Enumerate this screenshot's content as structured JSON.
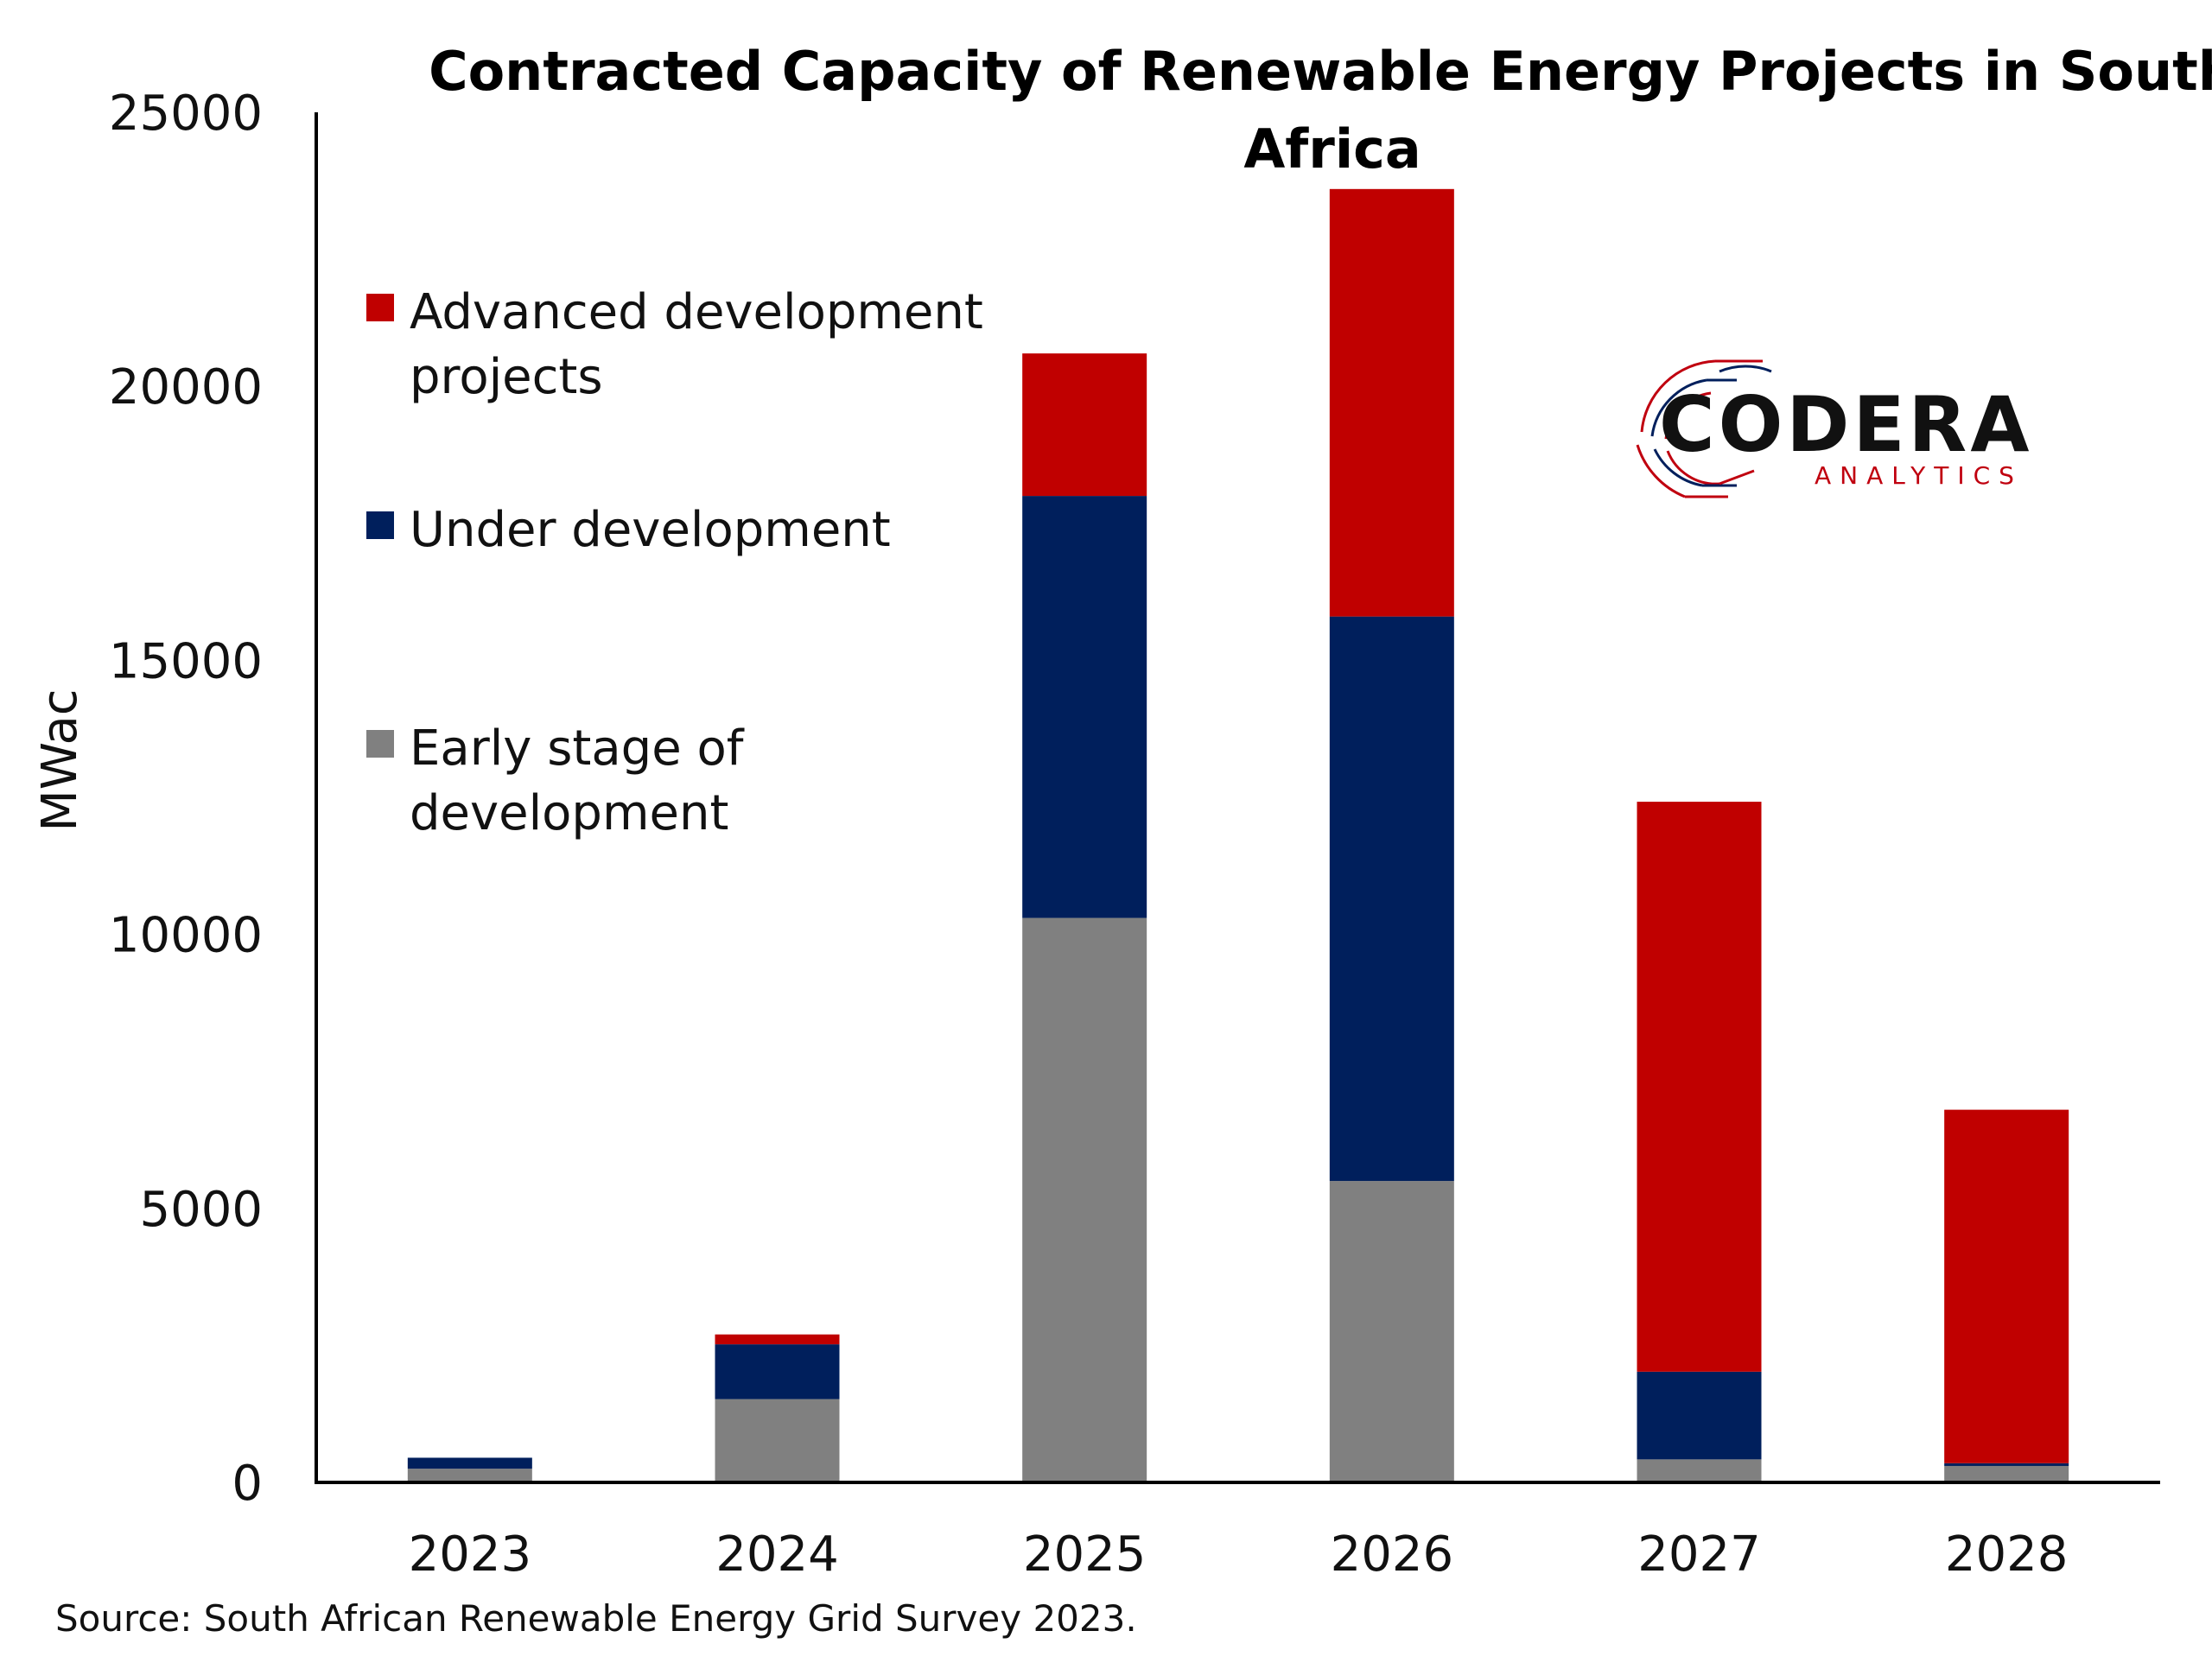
{
  "chart_data": {
    "type": "bar",
    "stacked": true,
    "title": "Contracted Capacity of Renewable Energy Projects in South Africa",
    "title_lines": [
      "Contracted Capacity of Renewable Energy Projects in South",
      "Africa"
    ],
    "ylabel": "MWac",
    "xlabel": "",
    "categories": [
      "2023",
      "2024",
      "2025",
      "2026",
      "2027",
      "2028"
    ],
    "ylim": [
      0,
      25000
    ],
    "yticks": [
      "0",
      "5000",
      "10000",
      "15000",
      "20000",
      "25000"
    ],
    "grid": false,
    "legend_position": "top-left",
    "series": [
      {
        "name": "Early stage of development",
        "legend_lines": [
          "Early stage of",
          "development"
        ],
        "color": "#808080",
        "values": [
          250,
          1520,
          10300,
          5500,
          420,
          300
        ]
      },
      {
        "name": "Under development",
        "legend_lines": [
          "Under development"
        ],
        "color": "#001f5c",
        "values": [
          200,
          1000,
          7700,
          10300,
          1600,
          50
        ]
      },
      {
        "name": "Advanced development projects",
        "legend_lines": [
          "Advanced development",
          "projects"
        ],
        "color": "#c00000",
        "values": [
          0,
          180,
          2600,
          7800,
          10400,
          6450
        ]
      }
    ]
  },
  "source": "Source: South African Renewable Energy Grid Survey 2023.",
  "logo": {
    "main": "CODERA",
    "sub": "ANALYTICS",
    "accent_color": "#c0000f",
    "secondary_color": "#001f5c"
  }
}
